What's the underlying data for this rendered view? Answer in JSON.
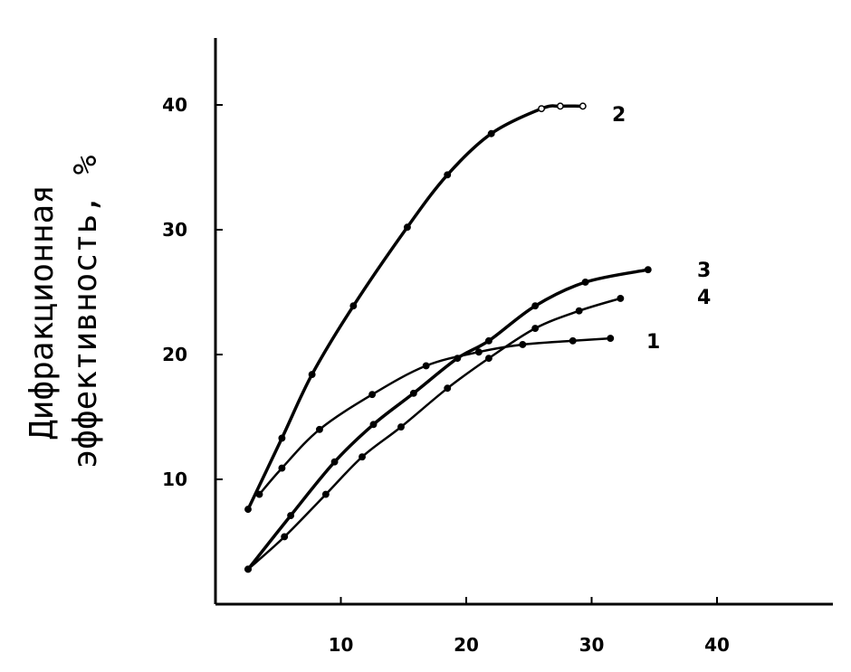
{
  "chart_data": {
    "type": "line",
    "title": "",
    "xlabel": "",
    "ylabel_lines": [
      "Дифракционная",
      "эффективность, %"
    ],
    "xlim": [
      0,
      46
    ],
    "ylim": [
      0,
      46
    ],
    "xticks": [
      10,
      20,
      30,
      40
    ],
    "yticks": [
      10,
      20,
      30,
      40
    ],
    "grid": false,
    "series": [
      {
        "name": "1",
        "x": [
          3.5,
          5.3,
          8.3,
          12.5,
          16.8,
          21.0,
          24.5,
          28.5,
          31.5
        ],
        "y": [
          8.8,
          10.9,
          14.0,
          16.8,
          19.1,
          20.2,
          20.8,
          21.1,
          21.3
        ]
      },
      {
        "name": "2",
        "x": [
          2.6,
          5.3,
          7.7,
          11.0,
          15.3,
          18.5,
          22.0,
          26.0,
          27.5,
          29.3
        ],
        "y": [
          7.6,
          13.3,
          18.4,
          23.9,
          30.2,
          34.4,
          37.7,
          39.7,
          39.9,
          39.9
        ]
      },
      {
        "name": "3",
        "x": [
          2.6,
          6.0,
          9.5,
          12.6,
          15.8,
          19.3,
          21.8,
          25.5,
          29.5,
          34.5
        ],
        "y": [
          2.8,
          7.1,
          11.4,
          14.4,
          16.9,
          19.7,
          21.1,
          23.9,
          25.8,
          26.8
        ]
      },
      {
        "name": "4",
        "x": [
          2.6,
          5.5,
          8.8,
          11.7,
          14.8,
          18.5,
          21.8,
          25.5,
          29.0,
          32.3
        ],
        "y": [
          2.8,
          5.4,
          8.8,
          11.8,
          14.2,
          17.3,
          19.7,
          22.1,
          23.5,
          24.5
        ]
      }
    ]
  }
}
